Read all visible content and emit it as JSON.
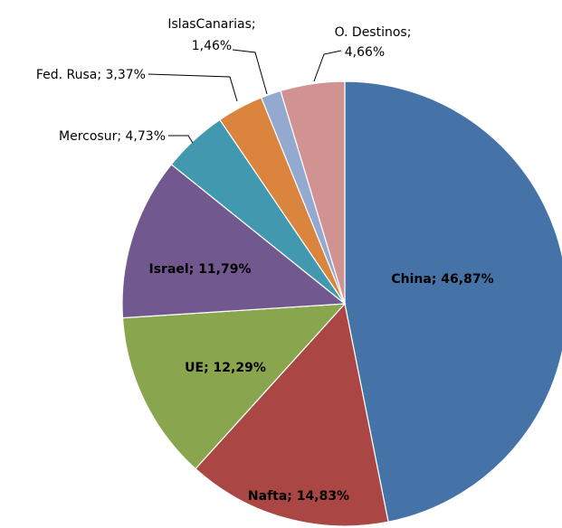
{
  "chart_data": {
    "type": "pie",
    "title": "",
    "slices": [
      {
        "name": "China",
        "label": "China; 46,87%",
        "value": 46.87,
        "color": "#4572a7"
      },
      {
        "name": "Nafta",
        "label": "Nafta; 14,83%",
        "value": 14.83,
        "color": "#aa4643"
      },
      {
        "name": "UE",
        "label": "UE; 12,29%",
        "value": 12.29,
        "color": "#89a54e"
      },
      {
        "name": "Israel",
        "label": "Israel; 11,79%",
        "value": 11.79,
        "color": "#71588f"
      },
      {
        "name": "Mercosur",
        "label": "Mercosur; 4,73%",
        "value": 4.73,
        "color": "#4198af"
      },
      {
        "name": "Fed. Rusa",
        "label": "Fed. Rusa; 3,37%",
        "value": 3.37,
        "color": "#db843d"
      },
      {
        "name": "Islas Canarias",
        "label_lines": [
          "IslasCanarias;",
          "1,46%"
        ],
        "value": 1.46,
        "color": "#93a9cf"
      },
      {
        "name": "O. Destinos",
        "label_lines": [
          "O. Destinos;",
          "4,66%"
        ],
        "value": 4.66,
        "color": "#d19392"
      }
    ],
    "legend": "none",
    "start_angle": "12 o'clock, clockwise"
  }
}
